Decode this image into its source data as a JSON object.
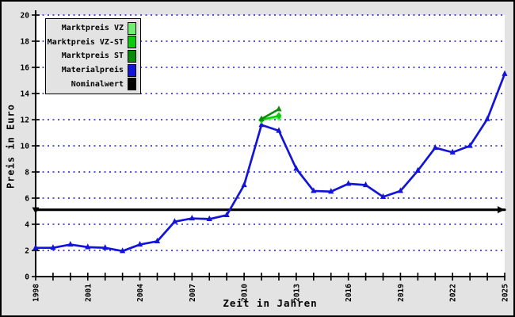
{
  "colors": {
    "window_background": "#e3e3e3",
    "plot_background": "#ffffff",
    "grid": "#1c1ccc",
    "axis": "#000000"
  },
  "legend": {
    "items": [
      {
        "label": "Marktpreis VZ",
        "color": "#70ee70"
      },
      {
        "label": "Marktpreis VZ-ST",
        "color": "#0acc0a"
      },
      {
        "label": "Marktpreis ST",
        "color": "#0a8a0a"
      },
      {
        "label": "Materialpreis",
        "color": "#1414d8"
      },
      {
        "label": "Nominalwert",
        "color": "#000000"
      }
    ]
  },
  "chart_data": {
    "type": "line",
    "title": "",
    "xlabel": "Zeit in Jahren",
    "ylabel": "Preis in Euro",
    "xlim": [
      1998,
      2025
    ],
    "ylim": [
      0,
      20
    ],
    "yticks": [
      0,
      2,
      4,
      6,
      8,
      10,
      12,
      14,
      16,
      18,
      20
    ],
    "xticks_minor_every_year": true,
    "xticks_labeled": [
      1998,
      2001,
      2004,
      2007,
      2010,
      2013,
      2016,
      2019,
      2022,
      2025
    ],
    "grid": "horizontal-dotted",
    "legend_position": "top-left",
    "series": [
      {
        "name": "Marktpreis VZ",
        "color": "#70ee70",
        "marker": "diamond",
        "width": 2.2,
        "x": [
          2011,
          2012
        ],
        "values": [
          11.95,
          12.15
        ],
        "draw_order": 3
      },
      {
        "name": "Marktpreis VZ-ST",
        "color": "#0acc0a",
        "marker": "diamond",
        "width": 2.4,
        "x": [
          2011,
          2012
        ],
        "values": [
          12.0,
          12.3
        ],
        "draw_order": 4
      },
      {
        "name": "Marktpreis ST",
        "color": "#0a8a0a",
        "marker": "triangle",
        "width": 2.6,
        "x": [
          2011,
          2012
        ],
        "values": [
          12.05,
          12.8
        ],
        "draw_order": 5
      },
      {
        "name": "Materialpreis",
        "color": "#1414d8",
        "marker": "triangle",
        "width": 2.7,
        "x": [
          1998,
          1999,
          2000,
          2001,
          2002,
          2003,
          2004,
          2005,
          2006,
          2007,
          2008,
          2009,
          2010,
          2011,
          2012,
          2013,
          2014,
          2015,
          2016,
          2017,
          2018,
          2019,
          2020,
          2021,
          2022,
          2023,
          2024,
          2025
        ],
        "values": [
          2.2,
          2.2,
          2.45,
          2.25,
          2.2,
          1.95,
          2.45,
          2.7,
          4.2,
          4.45,
          4.4,
          4.7,
          7.0,
          11.6,
          11.15,
          8.25,
          6.55,
          6.5,
          7.1,
          7.0,
          6.1,
          6.55,
          8.1,
          9.85,
          9.5,
          10.0,
          12.05,
          15.5
        ],
        "draw_order": 2
      },
      {
        "name": "Nominalwert",
        "color": "#000000",
        "marker": "arrows",
        "width": 3.2,
        "x": [
          1998,
          2025
        ],
        "values": [
          5.11,
          5.11
        ],
        "draw_order": 1
      }
    ]
  }
}
